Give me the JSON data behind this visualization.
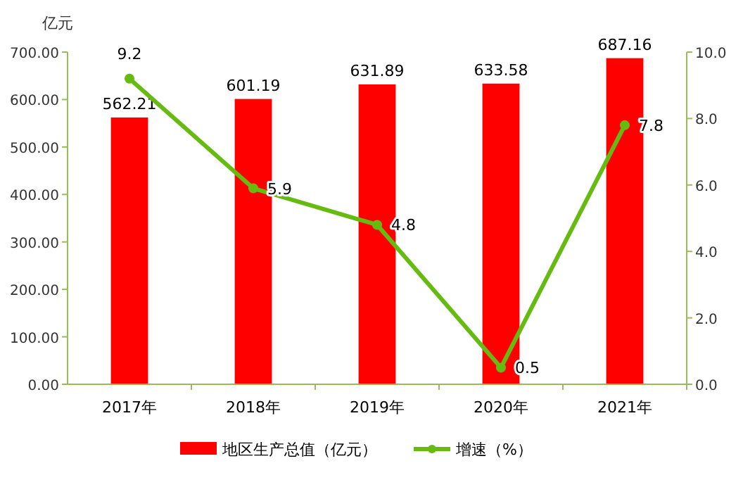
{
  "chart_data": {
    "type": "bar",
    "ylabel": "亿元",
    "categories": [
      "2017年",
      "2018年",
      "2019年",
      "2020年",
      "2021年"
    ],
    "series": [
      {
        "name": "地区生产总值（亿元）",
        "color": "#ff0000",
        "values": [
          562.21,
          601.19,
          631.89,
          633.58,
          687.16
        ]
      },
      {
        "name": "增速（%）",
        "type": "line",
        "axis": "y2",
        "color": "#66bb11",
        "marker": "circle",
        "values": [
          9.2,
          5.9,
          4.8,
          0.5,
          7.8
        ]
      }
    ],
    "ylim": [
      0,
      700
    ],
    "yticks": [
      {
        "value": 0,
        "label": "0.00"
      },
      {
        "value": 100,
        "label": "100.00"
      },
      {
        "value": 200,
        "label": "200.00"
      },
      {
        "value": 300,
        "label": "300.00"
      },
      {
        "value": 400,
        "label": "400.00"
      },
      {
        "value": 500,
        "label": "500.00"
      },
      {
        "value": 600,
        "label": "600.00"
      },
      {
        "value": 700,
        "label": "700.00"
      }
    ],
    "y2lim": [
      0,
      10
    ],
    "y2ticks": [
      {
        "value": 0,
        "label": "0.0"
      },
      {
        "value": 2,
        "label": "2.0"
      },
      {
        "value": 4,
        "label": "4.0"
      },
      {
        "value": 6,
        "label": "6.0"
      },
      {
        "value": 8,
        "label": "8.0"
      },
      {
        "value": 10,
        "label": "10.0"
      }
    ],
    "data_labels": true,
    "legend": "bottom",
    "grid": false
  }
}
